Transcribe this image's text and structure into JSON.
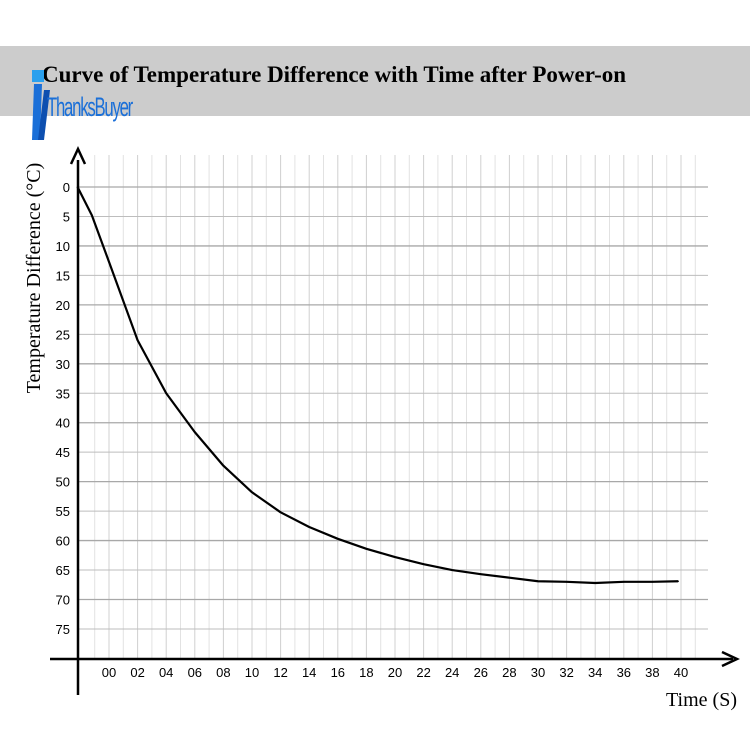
{
  "chart_data": {
    "type": "line",
    "title": "Curve of Temperature Difference with Time after Power-on",
    "xlabel": "Time (S)",
    "ylabel": "Temperature Difference (°C)",
    "x_ticks": [
      "00",
      "02",
      "04",
      "06",
      "08",
      "10",
      "12",
      "14",
      "16",
      "18",
      "20",
      "22",
      "24",
      "26",
      "28",
      "30",
      "32",
      "34",
      "36",
      "38",
      "40"
    ],
    "y_ticks": [
      "0",
      "5",
      "10",
      "15",
      "20",
      "25",
      "30",
      "35",
      "40",
      "45",
      "50",
      "55",
      "60",
      "65",
      "70",
      "75"
    ],
    "ylim": [
      0,
      75
    ],
    "y_inverted": true,
    "grid": true,
    "series": [
      {
        "name": "Temperature Difference",
        "color": "#000000",
        "x": [
          -2.2,
          -1.2,
          0,
          2,
          4,
          6,
          8,
          10,
          12,
          14,
          16,
          18,
          20,
          22,
          24,
          26,
          28,
          30,
          32,
          34,
          36,
          38,
          39.8
        ],
        "y": [
          0,
          4.8,
          12.7,
          26,
          35,
          41.6,
          47.3,
          51.8,
          55.2,
          57.7,
          59.7,
          61.4,
          62.8,
          64,
          65,
          65.7,
          66.3,
          66.9,
          67,
          67.2,
          67,
          67,
          66.9
        ]
      }
    ]
  },
  "logo": {
    "text": "ThanksBuyer"
  }
}
